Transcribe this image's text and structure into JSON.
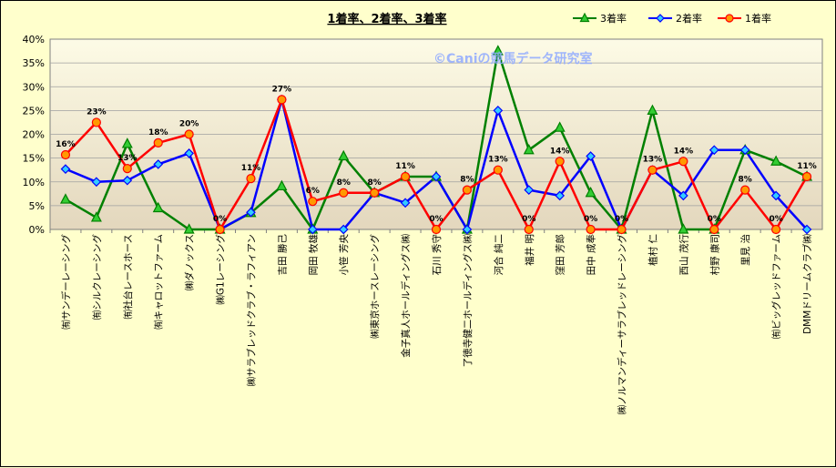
{
  "chart_data": {
    "type": "line",
    "title": "1着率、2着率、3着率",
    "watermark": "©Caniの競馬データ研究室",
    "ylim": [
      0,
      40
    ],
    "yticks": [
      "0%",
      "5%",
      "10%",
      "15%",
      "20%",
      "25%",
      "30%",
      "35%",
      "40%"
    ],
    "grid": true,
    "legend_position": "top-right",
    "categories": [
      "㈲サンデーレーシング",
      "㈲シルクレーシング",
      "㈲社台レースホース",
      "㈲キャロットファーム",
      "㈱ダノックス",
      "㈱G1レーシング",
      "㈱サラブレッドクラブ・ラフィアン",
      "吉田 勝己",
      "岡田 牧雄",
      "小笹 芳央",
      "㈱東京ホースレーシング",
      "金子真人ホールディングス㈱",
      "石川 秀守",
      "了徳寺健二ホールディングス㈱",
      "河合 純二",
      "福井 明",
      "窪田 芳郎",
      "田中 成奉",
      "㈱ノルマンディーサラブレッドレーシング",
      "植村 仁",
      "西山 茂行",
      "村野 康司",
      "里見 治",
      "㈲ビッグレッドファーム",
      "DMMドリームクラブ㈱"
    ],
    "series": [
      {
        "name": "3着率",
        "color": "#008000",
        "marker": "triangle",
        "fill": "#33cc33",
        "values": [
          6.3,
          2.5,
          18.0,
          4.5,
          0,
          0,
          3.5,
          9.1,
          0,
          15.4,
          7.7,
          11.1,
          11.1,
          0,
          37.5,
          16.7,
          21.4,
          7.7,
          0,
          25.0,
          0,
          0,
          16.7,
          14.3,
          11.1
        ]
      },
      {
        "name": "2着率",
        "color": "#0000ff",
        "marker": "diamond",
        "fill": "#33ccff",
        "values": [
          12.7,
          10.0,
          10.3,
          13.7,
          16.0,
          0,
          3.6,
          27.3,
          0,
          0,
          7.7,
          5.6,
          11.1,
          0,
          25.0,
          8.3,
          7.1,
          15.4,
          0,
          12.5,
          7.1,
          16.7,
          16.7,
          7.1,
          0
        ]
      },
      {
        "name": "1着率",
        "color": "#ff0000",
        "marker": "circle",
        "fill": "#ff9900",
        "values": [
          15.7,
          22.5,
          12.8,
          18.2,
          20.0,
          0,
          10.7,
          27.3,
          5.9,
          7.7,
          7.7,
          11.1,
          0,
          8.3,
          12.5,
          0,
          14.3,
          0,
          0,
          12.5,
          14.3,
          0,
          8.3,
          0,
          11.1
        ]
      }
    ],
    "data_labels": [
      "16%",
      "23%",
      "13%",
      "18%",
      "20%",
      "0%",
      "11%",
      "27%",
      "6%",
      "8%",
      "8%",
      "11%",
      "0%",
      "8%",
      "13%",
      "0%",
      "14%",
      "0%",
      "0%",
      "13%",
      "14%",
      "0%",
      "8%",
      "0%",
      "11%"
    ]
  }
}
